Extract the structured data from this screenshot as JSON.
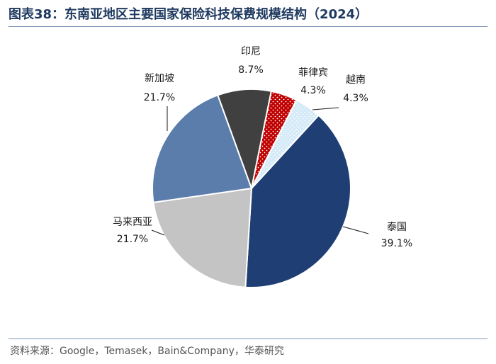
{
  "header": {
    "title": "图表38：东南亚地区主要国家保险科技保费规模结构（2024）"
  },
  "footer": {
    "source": "资料来源：Google，Temasek，Bain&Company，华泰研究"
  },
  "chart_data": {
    "type": "pie",
    "title": "图表38：东南亚地区主要国家保险科技保费规模结构（2024）",
    "slices": [
      {
        "name": "泰国",
        "value": 39.1,
        "value_label": "39.1%",
        "color": "#1f3e73",
        "pattern": "solid"
      },
      {
        "name": "马来西亚",
        "value": 21.7,
        "value_label": "21.7%",
        "color": "#c4c4c4",
        "pattern": "solid"
      },
      {
        "name": "新加坡",
        "value": 21.7,
        "value_label": "21.7%",
        "color": "#5b7dab",
        "pattern": "solid"
      },
      {
        "name": "印尼",
        "value": 8.7,
        "value_label": "8.7%",
        "color": "#404040",
        "pattern": "solid"
      },
      {
        "name": "菲律宾",
        "value": 4.3,
        "value_label": "4.3%",
        "color": "#c00000",
        "pattern": "dots-white"
      },
      {
        "name": "越南",
        "value": 4.3,
        "value_label": "4.3%",
        "color": "#d6ebf8",
        "pattern": "dots-blue"
      }
    ],
    "legend": "none",
    "data_labels": "outside-with-leader-lines"
  }
}
